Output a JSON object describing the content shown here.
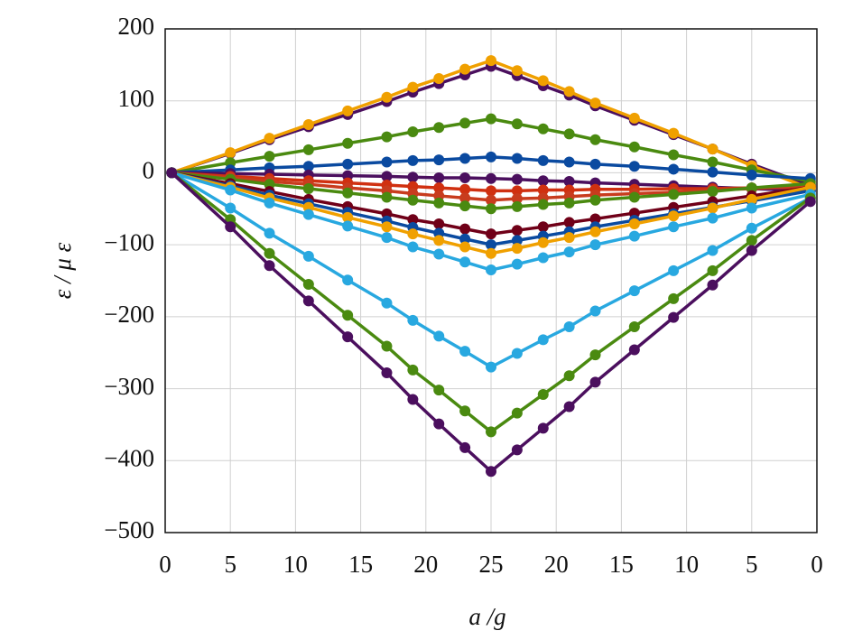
{
  "chart_data": {
    "type": "line",
    "x_label": "a /g",
    "y_label": "ε / μ ε",
    "x": [
      0.5,
      5,
      8,
      11,
      14,
      17,
      19,
      21,
      23,
      25,
      27,
      29,
      31,
      33,
      36,
      39,
      42,
      45,
      49.5
    ],
    "xlim": [
      0,
      50
    ],
    "xticks": [
      0,
      5,
      10,
      15,
      20,
      25,
      {
        "value": 30,
        "label": "20"
      },
      {
        "value": 35,
        "label": "15"
      },
      {
        "value": 40,
        "label": "10"
      },
      {
        "value": 45,
        "label": "5"
      },
      {
        "value": 50,
        "label": "0"
      }
    ],
    "ylim": [
      -500,
      200
    ],
    "yticks": [
      {
        "value": -500,
        "label": "−500"
      },
      {
        "value": -400,
        "label": "−400"
      },
      {
        "value": -300,
        "label": "−300"
      },
      {
        "value": -200,
        "label": "−200"
      },
      {
        "value": -100,
        "label": "−100"
      },
      0,
      100,
      200
    ],
    "grid": true,
    "series": [
      {
        "color": "#4b0f5e",
        "values": [
          0,
          27,
          46,
          64,
          81,
          99,
          112,
          124,
          136,
          148,
          135,
          121,
          108,
          93,
          73,
          53,
          33,
          12,
          -18
        ]
      },
      {
        "color": "#f0a000",
        "values": [
          0,
          28,
          48,
          67,
          86,
          105,
          119,
          131,
          144,
          156,
          142,
          128,
          113,
          97,
          76,
          55,
          33,
          10,
          -22
        ]
      },
      {
        "color": "#4a8a10",
        "values": [
          0,
          14,
          23,
          32,
          41,
          50,
          57,
          63,
          69,
          75,
          68,
          61,
          54,
          46,
          36,
          25,
          15,
          4,
          -12
        ]
      },
      {
        "color": "#0a4aa0",
        "values": [
          0,
          4,
          7,
          9,
          12,
          15,
          17,
          18,
          20,
          22,
          20,
          17,
          15,
          12,
          9,
          5,
          1,
          -3,
          -8
        ]
      },
      {
        "color": "#4b0f5e",
        "values": [
          0,
          -1,
          -2,
          -3,
          -4,
          -5,
          -6,
          -7,
          -7,
          -8,
          -9,
          -11,
          -12,
          -14,
          -16,
          -18,
          -20,
          -22,
          -25
        ]
      },
      {
        "color": "#d03010",
        "values": [
          0,
          -5,
          -8,
          -11,
          -14,
          -17,
          -19,
          -21,
          -23,
          -25,
          -25,
          -24,
          -24,
          -23,
          -23,
          -22,
          -22,
          -21,
          -20
        ]
      },
      {
        "color": "#c83c1e",
        "values": [
          0,
          -7,
          -12,
          -16,
          -21,
          -25,
          -29,
          -32,
          -35,
          -38,
          -36,
          -35,
          -33,
          -31,
          -29,
          -27,
          -24,
          -22,
          -18
        ]
      },
      {
        "color": "#4a8a10",
        "values": [
          0,
          -9,
          -16,
          -22,
          -28,
          -34,
          -38,
          -42,
          -46,
          -50,
          -47,
          -44,
          -42,
          -38,
          -34,
          -30,
          -26,
          -21,
          -15
        ]
      },
      {
        "color": "#700018",
        "values": [
          0,
          -15,
          -26,
          -37,
          -47,
          -57,
          -65,
          -71,
          -78,
          -85,
          -80,
          -75,
          -69,
          -64,
          -56,
          -48,
          -40,
          -32,
          -20
        ]
      },
      {
        "color": "#0a4aa0",
        "values": [
          0,
          -18,
          -31,
          -43,
          -55,
          -67,
          -76,
          -84,
          -92,
          -100,
          -94,
          -88,
          -82,
          -75,
          -66,
          -57,
          -48,
          -39,
          -25
        ]
      },
      {
        "color": "#f0a000",
        "values": [
          0,
          -20,
          -35,
          -48,
          -62,
          -75,
          -85,
          -94,
          -103,
          -112,
          -105,
          -97,
          -90,
          -82,
          -71,
          -60,
          -49,
          -37,
          -20
        ]
      },
      {
        "color": "#28a8e0",
        "values": [
          0,
          -24,
          -42,
          -58,
          -74,
          -90,
          -103,
          -113,
          -124,
          -135,
          -127,
          -118,
          -110,
          -100,
          -88,
          -75,
          -63,
          -49,
          -30
        ]
      },
      {
        "color": "#28a8e0",
        "values": [
          0,
          -49,
          -84,
          -116,
          -149,
          -181,
          -205,
          -227,
          -248,
          -270,
          -251,
          -232,
          -214,
          -192,
          -164,
          -136,
          -108,
          -77,
          -35
        ]
      },
      {
        "color": "#4a8a10",
        "values": [
          0,
          -65,
          -112,
          -155,
          -198,
          -241,
          -274,
          -302,
          -331,
          -360,
          -334,
          -308,
          -282,
          -253,
          -214,
          -175,
          -136,
          -94,
          -35
        ]
      },
      {
        "color": "#4b0f5e",
        "values": [
          0,
          -75,
          -129,
          -178,
          -228,
          -278,
          -315,
          -349,
          -382,
          -415,
          -385,
          -355,
          -325,
          -291,
          -246,
          -201,
          -156,
          -108,
          -40
        ]
      }
    ]
  }
}
